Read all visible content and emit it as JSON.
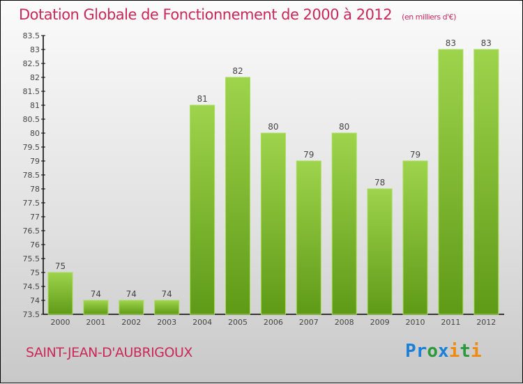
{
  "header": {
    "title": "Dotation Globale de Fonctionnement de 2000 à 2012",
    "subtitle": "(en milliers d'€)"
  },
  "footer": {
    "commune": "SAINT-JEAN-D'AUBRIGOUX",
    "logo": "Proxiti"
  },
  "colors": {
    "title": "#c8285a",
    "bar_top": "#9ed44c",
    "bar_bottom": "#5f9a17"
  },
  "chart_data": {
    "type": "bar",
    "title": "Dotation Globale de Fonctionnement de 2000 à 2012",
    "ylabel": "en milliers d'€",
    "categories": [
      "2000",
      "2001",
      "2002",
      "2003",
      "2004",
      "2005",
      "2006",
      "2007",
      "2008",
      "2009",
      "2010",
      "2011",
      "2012"
    ],
    "values": [
      75,
      74,
      74,
      74,
      81,
      82,
      80,
      79,
      80,
      78,
      79,
      83,
      83
    ],
    "ylim": [
      73.5,
      83.5
    ],
    "yticks": [
      "73.5",
      "74",
      "74.5",
      "75",
      "75.5",
      "76",
      "76.5",
      "77",
      "77.5",
      "78",
      "78.5",
      "79",
      "79.5",
      "80",
      "80.5",
      "81",
      "81.5",
      "82",
      "82.5",
      "83",
      "83.5"
    ],
    "grid": false
  }
}
